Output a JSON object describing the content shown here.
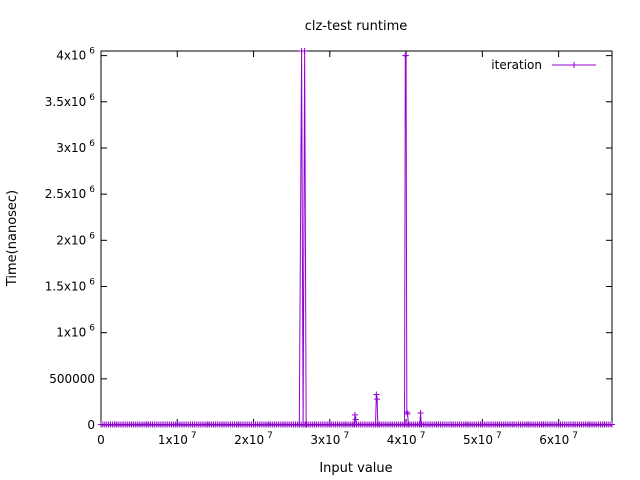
{
  "chart_data": {
    "type": "line",
    "title": "clz-test runtime",
    "xlabel": "Input value",
    "ylabel": "Time(nanosec)",
    "xlim": [
      0,
      67000000
    ],
    "ylim": [
      0,
      4050000
    ],
    "grid": false,
    "legend_position": "top-right",
    "x_ticks": [
      {
        "value": 0,
        "mantissa": "0",
        "exponent": ""
      },
      {
        "value": 10000000,
        "mantissa": "1x10",
        "exponent": "7"
      },
      {
        "value": 20000000,
        "mantissa": "2x10",
        "exponent": "7"
      },
      {
        "value": 30000000,
        "mantissa": "3x10",
        "exponent": "7"
      },
      {
        "value": 40000000,
        "mantissa": "4x10",
        "exponent": "7"
      },
      {
        "value": 50000000,
        "mantissa": "5x10",
        "exponent": "7"
      },
      {
        "value": 60000000,
        "mantissa": "6x10",
        "exponent": "7"
      }
    ],
    "y_ticks": [
      {
        "value": 0,
        "mantissa": "0",
        "exponent": ""
      },
      {
        "value": 500000,
        "mantissa": "500000",
        "exponent": ""
      },
      {
        "value": 1000000,
        "mantissa": "1x10",
        "exponent": "6"
      },
      {
        "value": 1500000,
        "mantissa": "1.5x10",
        "exponent": "6"
      },
      {
        "value": 2000000,
        "mantissa": "2x10",
        "exponent": "6"
      },
      {
        "value": 2500000,
        "mantissa": "2.5x10",
        "exponent": "6"
      },
      {
        "value": 3000000,
        "mantissa": "3x10",
        "exponent": "6"
      },
      {
        "value": 3500000,
        "mantissa": "3.5x10",
        "exponent": "6"
      },
      {
        "value": 4000000,
        "mantissa": "4x10",
        "exponent": "6"
      }
    ],
    "baseline_y": 6000,
    "series": [
      {
        "name": "iteration",
        "color": "#9400d3",
        "points": [
          [
            0,
            6000
          ],
          [
            2000000,
            7000
          ],
          [
            4000000,
            6500
          ],
          [
            6000000,
            8000
          ],
          [
            8000000,
            6000
          ],
          [
            10000000,
            7500
          ],
          [
            12000000,
            6000
          ],
          [
            14000000,
            8000
          ],
          [
            16000000,
            6500
          ],
          [
            18000000,
            7000
          ],
          [
            20000000,
            6000
          ],
          [
            22000000,
            7500
          ],
          [
            24000000,
            6500
          ],
          [
            26000000,
            7000
          ],
          [
            26300000,
            4050000
          ],
          [
            26500000,
            6000
          ],
          [
            26700000,
            4050000
          ],
          [
            26900000,
            6000
          ],
          [
            28000000,
            7000
          ],
          [
            30000000,
            6500
          ],
          [
            32000000,
            8000
          ],
          [
            33200000,
            8000
          ],
          [
            33300000,
            110000
          ],
          [
            33400000,
            60000
          ],
          [
            33500000,
            8000
          ],
          [
            36000000,
            8000
          ],
          [
            36100000,
            330000
          ],
          [
            36200000,
            280000
          ],
          [
            36300000,
            8000
          ],
          [
            39800000,
            8000
          ],
          [
            39900000,
            4000000
          ],
          [
            40000000,
            4000000
          ],
          [
            40100000,
            140000
          ],
          [
            40200000,
            120000
          ],
          [
            40300000,
            8000
          ],
          [
            41800000,
            8000
          ],
          [
            41900000,
            130000
          ],
          [
            42000000,
            8000
          ],
          [
            44000000,
            7000
          ],
          [
            46000000,
            6000
          ],
          [
            48000000,
            7500
          ],
          [
            50000000,
            6500
          ],
          [
            52000000,
            7000
          ],
          [
            54000000,
            6000
          ],
          [
            56000000,
            8000
          ],
          [
            58000000,
            6500
          ],
          [
            60000000,
            7000
          ],
          [
            62000000,
            6000
          ],
          [
            64000000,
            7500
          ],
          [
            66000000,
            6500
          ],
          [
            67000000,
            6000
          ]
        ]
      }
    ]
  }
}
